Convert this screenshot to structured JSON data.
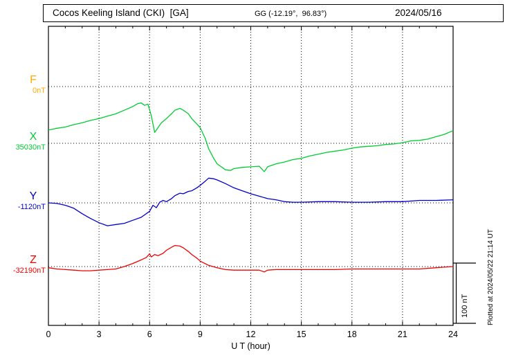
{
  "header": {
    "title": "Cocos Keeling Island (CKI)  [GA]",
    "coords": "GG (-12.19°,  96.83°)",
    "date": "2024/05/16"
  },
  "side_note": "Plotted at 2024/05/22 21:14 UT",
  "chart_data": {
    "type": "line",
    "title": "Cocos Keeling Island (CKI)  [GA]",
    "xlabel": "U T (hour)",
    "x_range": [
      0,
      24
    ],
    "x_ticks": [
      0,
      3,
      6,
      9,
      12,
      15,
      18,
      21,
      24
    ],
    "grid": "dotted vertical lines every 3 h; dotted horizontal line at each trace baseline",
    "scale_bar": {
      "label": "100 nT",
      "nT": 100
    },
    "series": [
      {
        "name": "F",
        "color": "#ffaa00",
        "baseline_label": "0nT",
        "baseline_nT": 0,
        "points": []
      },
      {
        "name": "X",
        "color": "#00cc33",
        "baseline_label": "35030nT",
        "baseline_nT": 35030,
        "points": [
          [
            0,
            35052
          ],
          [
            0.5,
            35055
          ],
          [
            1,
            35057
          ],
          [
            1.5,
            35061
          ],
          [
            2,
            35064
          ],
          [
            2.5,
            35068
          ],
          [
            3,
            35071
          ],
          [
            3.5,
            35075
          ],
          [
            4,
            35079
          ],
          [
            4.5,
            35085
          ],
          [
            5,
            35091
          ],
          [
            5.3,
            35096
          ],
          [
            5.5,
            35097
          ],
          [
            5.7,
            35093
          ],
          [
            5.9,
            35095
          ],
          [
            6.1,
            35076
          ],
          [
            6.3,
            35048
          ],
          [
            6.5,
            35056
          ],
          [
            6.7,
            35064
          ],
          [
            7,
            35071
          ],
          [
            7.3,
            35079
          ],
          [
            7.5,
            35085
          ],
          [
            7.8,
            35088
          ],
          [
            8,
            35085
          ],
          [
            8.3,
            35079
          ],
          [
            8.5,
            35071
          ],
          [
            8.8,
            35062
          ],
          [
            9,
            35056
          ],
          [
            9.3,
            35038
          ],
          [
            9.5,
            35021
          ],
          [
            9.8,
            35005
          ],
          [
            10,
            34996
          ],
          [
            10.3,
            34990
          ],
          [
            10.5,
            34986
          ],
          [
            10.8,
            34985
          ],
          [
            11,
            34988
          ],
          [
            11.5,
            34990
          ],
          [
            12,
            34991
          ],
          [
            12.5,
            34992
          ],
          [
            12.8,
            34983
          ],
          [
            13,
            34991
          ],
          [
            13.5,
            34996
          ],
          [
            14,
            34999
          ],
          [
            14.5,
            35003
          ],
          [
            15,
            35005
          ],
          [
            15.5,
            35009
          ],
          [
            16,
            35012
          ],
          [
            16.5,
            35015
          ],
          [
            17,
            35017
          ],
          [
            17.5,
            35019
          ],
          [
            18,
            35022
          ],
          [
            18.5,
            35024
          ],
          [
            19,
            35025
          ],
          [
            19.5,
            35026
          ],
          [
            20,
            35028
          ],
          [
            20.5,
            35029
          ],
          [
            21,
            35031
          ],
          [
            21.5,
            35034
          ],
          [
            22,
            35035
          ],
          [
            22.5,
            35037
          ],
          [
            23,
            35041
          ],
          [
            23.5,
            35045
          ],
          [
            24,
            35051
          ]
        ]
      },
      {
        "name": "Y",
        "color": "#0000cc",
        "baseline_label": "-1120nT",
        "baseline_nT": -1120,
        "points": [
          [
            0,
            -1120
          ],
          [
            0.5,
            -1121
          ],
          [
            1,
            -1124
          ],
          [
            1.5,
            -1129
          ],
          [
            2,
            -1138
          ],
          [
            2.5,
            -1146
          ],
          [
            3,
            -1153
          ],
          [
            3.5,
            -1158
          ],
          [
            4,
            -1156
          ],
          [
            4.5,
            -1154
          ],
          [
            5,
            -1149
          ],
          [
            5.5,
            -1144
          ],
          [
            6,
            -1134
          ],
          [
            6.2,
            -1124
          ],
          [
            6.4,
            -1128
          ],
          [
            6.6,
            -1119
          ],
          [
            6.8,
            -1116
          ],
          [
            7,
            -1118
          ],
          [
            7.3,
            -1113
          ],
          [
            7.5,
            -1108
          ],
          [
            7.8,
            -1104
          ],
          [
            8,
            -1105
          ],
          [
            8.3,
            -1101
          ],
          [
            8.5,
            -1100
          ],
          [
            8.8,
            -1095
          ],
          [
            9,
            -1091
          ],
          [
            9.3,
            -1084
          ],
          [
            9.5,
            -1079
          ],
          [
            9.8,
            -1080
          ],
          [
            10,
            -1082
          ],
          [
            10.5,
            -1088
          ],
          [
            11,
            -1095
          ],
          [
            11.5,
            -1100
          ],
          [
            12,
            -1105
          ],
          [
            12.5,
            -1109
          ],
          [
            13,
            -1113
          ],
          [
            13.5,
            -1115
          ],
          [
            14,
            -1118
          ],
          [
            14.5,
            -1119
          ],
          [
            15,
            -1119
          ],
          [
            16,
            -1118
          ],
          [
            17,
            -1118
          ],
          [
            18,
            -1119
          ],
          [
            19,
            -1119
          ],
          [
            20,
            -1118
          ],
          [
            21,
            -1118
          ],
          [
            22,
            -1116
          ],
          [
            23,
            -1116
          ],
          [
            24,
            -1115
          ]
        ]
      },
      {
        "name": "Z",
        "color": "#ee0000",
        "baseline_label": "-32190nT",
        "baseline_nT": -32190,
        "points": [
          [
            0,
            -32192
          ],
          [
            0.5,
            -32194
          ],
          [
            1,
            -32195
          ],
          [
            1.5,
            -32196
          ],
          [
            2,
            -32197
          ],
          [
            2.5,
            -32197
          ],
          [
            3,
            -32196
          ],
          [
            3.5,
            -32195
          ],
          [
            4,
            -32194
          ],
          [
            4.5,
            -32190
          ],
          [
            5,
            -32185
          ],
          [
            5.5,
            -32179
          ],
          [
            5.8,
            -32175
          ],
          [
            6,
            -32169
          ],
          [
            6.1,
            -32174
          ],
          [
            6.3,
            -32170
          ],
          [
            6.5,
            -32172
          ],
          [
            6.8,
            -32168
          ],
          [
            7,
            -32163
          ],
          [
            7.3,
            -32158
          ],
          [
            7.5,
            -32155
          ],
          [
            7.8,
            -32156
          ],
          [
            8,
            -32159
          ],
          [
            8.3,
            -32165
          ],
          [
            8.5,
            -32170
          ],
          [
            8.8,
            -32176
          ],
          [
            9,
            -32181
          ],
          [
            9.5,
            -32188
          ],
          [
            10,
            -32192
          ],
          [
            10.5,
            -32195
          ],
          [
            11,
            -32196
          ],
          [
            11.5,
            -32196
          ],
          [
            12,
            -32196
          ],
          [
            12.5,
            -32196
          ],
          [
            12.8,
            -32199
          ],
          [
            13,
            -32196
          ],
          [
            13.5,
            -32195
          ],
          [
            14,
            -32195
          ],
          [
            15,
            -32195
          ],
          [
            16,
            -32195
          ],
          [
            17,
            -32195
          ],
          [
            18,
            -32194
          ],
          [
            19,
            -32194
          ],
          [
            20,
            -32194
          ],
          [
            21,
            -32194
          ],
          [
            22,
            -32194
          ],
          [
            23,
            -32192
          ],
          [
            24,
            -32190
          ]
        ]
      }
    ]
  }
}
